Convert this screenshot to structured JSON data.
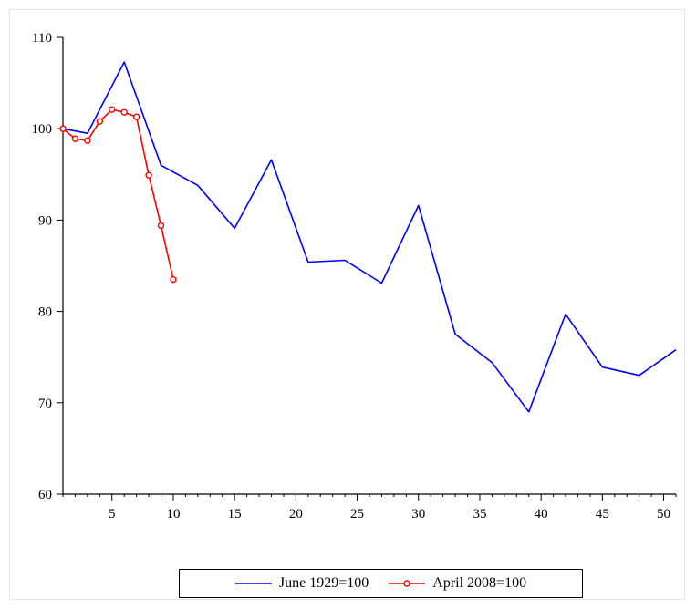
{
  "chart_data": {
    "type": "line",
    "title": "",
    "xlabel": "",
    "ylabel": "",
    "xlim": [
      1,
      51
    ],
    "ylim": [
      60,
      110
    ],
    "xticks": [
      5,
      10,
      15,
      20,
      25,
      30,
      35,
      40,
      45,
      50
    ],
    "yticks": [
      60,
      70,
      80,
      90,
      100,
      110
    ],
    "grid": false,
    "legend_position": "bottom",
    "series": [
      {
        "name": "June 1929=100",
        "color": "#0000ff",
        "markers": false,
        "x": [
          1,
          3,
          6,
          9,
          12,
          15,
          18,
          21,
          24,
          27,
          30,
          33,
          36,
          39,
          42,
          45,
          48,
          51
        ],
        "y": [
          100,
          99.5,
          107.3,
          96,
          93.8,
          89.1,
          96.6,
          85.4,
          85.6,
          83.1,
          91.6,
          77.5,
          74.4,
          69,
          79.7,
          73.9,
          73,
          75.8
        ]
      },
      {
        "name": "April 2008=100",
        "color": "#ff0000",
        "markers": true,
        "x": [
          1,
          2,
          3,
          4,
          5,
          6,
          7,
          8,
          9,
          10
        ],
        "y": [
          100,
          98.9,
          98.7,
          100.8,
          102.1,
          101.8,
          101.3,
          94.9,
          89.4,
          83.5
        ]
      }
    ]
  }
}
